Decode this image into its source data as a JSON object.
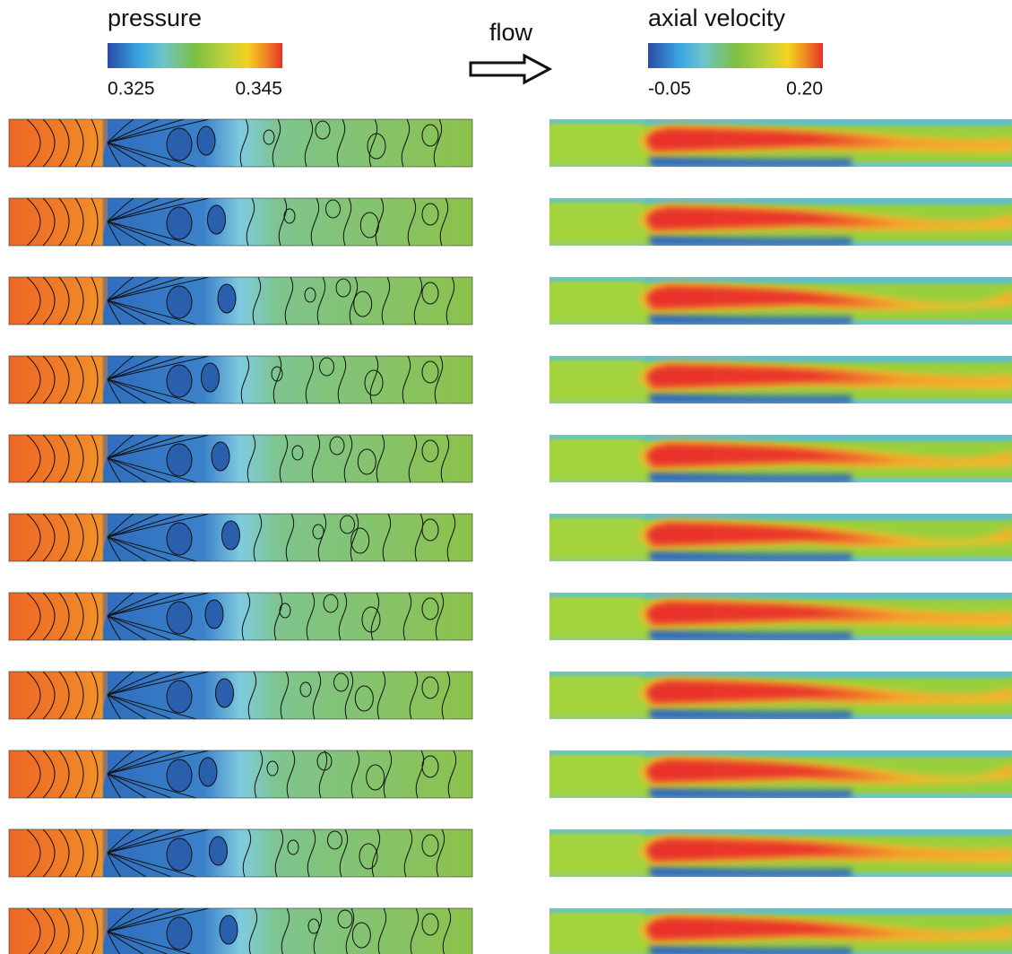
{
  "legends": [
    {
      "title": "pressure",
      "min_label": "0.325",
      "max_label": "0.345"
    },
    {
      "title": "axial velocity",
      "min_label": "-0.05",
      "max_label": "0.20"
    }
  ],
  "flow_label": "flow"
}
